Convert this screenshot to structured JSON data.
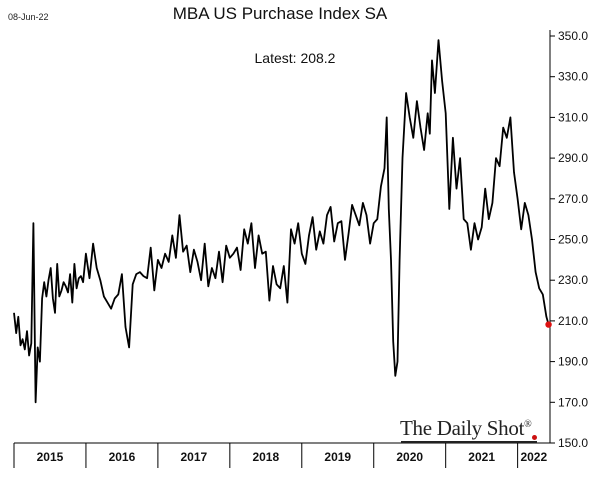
{
  "date_stamp": "08-Jun-22",
  "latest_label": "Latest:",
  "latest_value": "208.2",
  "watermark": "The Daily Shot",
  "watermark_mark": "®",
  "chart_data": {
    "type": "line",
    "title": "MBA US Purchase Index SA",
    "xlabel": "",
    "ylabel": "",
    "ylim": [
      150,
      350
    ],
    "xlim": [
      2015.0,
      2022.45
    ],
    "y_ticks": [
      "150.0",
      "170.0",
      "190.0",
      "210.0",
      "230.0",
      "250.0",
      "270.0",
      "290.0",
      "310.0",
      "330.0",
      "350.0"
    ],
    "x_tick_labels": [
      "2015",
      "2016",
      "2017",
      "2018",
      "2019",
      "2020",
      "2021",
      "2022"
    ],
    "grid": false,
    "legend": "none",
    "line_color": "#000000",
    "marker_color": "#dd1111",
    "series": [
      {
        "x": [
          2015.0,
          2015.03,
          2015.06,
          2015.09,
          2015.12,
          2015.15,
          2015.18,
          2015.21,
          2015.24,
          2015.27,
          2015.3,
          2015.33,
          2015.36,
          2015.39,
          2015.42,
          2015.45,
          2015.48,
          2015.51,
          2015.54,
          2015.57,
          2015.6,
          2015.63,
          2015.66,
          2015.69,
          2015.72,
          2015.75,
          2015.78,
          2015.81,
          2015.84,
          2015.87,
          2015.9,
          2015.93,
          2015.96,
          2016.0,
          2016.05,
          2016.1,
          2016.15,
          2016.2,
          2016.25,
          2016.3,
          2016.35,
          2016.4,
          2016.45,
          2016.5,
          2016.55,
          2016.6,
          2016.65,
          2016.7,
          2016.75,
          2016.8,
          2016.85,
          2016.9,
          2016.95,
          2017.0,
          2017.05,
          2017.1,
          2017.15,
          2017.2,
          2017.25,
          2017.3,
          2017.35,
          2017.4,
          2017.45,
          2017.5,
          2017.55,
          2017.6,
          2017.65,
          2017.7,
          2017.75,
          2017.8,
          2017.85,
          2017.9,
          2017.95,
          2018.0,
          2018.05,
          2018.1,
          2018.15,
          2018.2,
          2018.25,
          2018.3,
          2018.35,
          2018.4,
          2018.45,
          2018.5,
          2018.55,
          2018.6,
          2018.65,
          2018.7,
          2018.75,
          2018.8,
          2018.85,
          2018.9,
          2018.95,
          2019.0,
          2019.05,
          2019.1,
          2019.15,
          2019.2,
          2019.25,
          2019.3,
          2019.35,
          2019.4,
          2019.45,
          2019.5,
          2019.55,
          2019.6,
          2019.65,
          2019.7,
          2019.75,
          2019.8,
          2019.85,
          2019.9,
          2019.95,
          2020.0,
          2020.05,
          2020.1,
          2020.15,
          2020.18,
          2020.21,
          2020.24,
          2020.27,
          2020.3,
          2020.33,
          2020.36,
          2020.4,
          2020.45,
          2020.5,
          2020.55,
          2020.6,
          2020.65,
          2020.7,
          2020.75,
          2020.78,
          2020.81,
          2020.85,
          2020.9,
          2020.95,
          2021.0,
          2021.05,
          2021.1,
          2021.15,
          2021.2,
          2021.25,
          2021.3,
          2021.35,
          2021.4,
          2021.45,
          2021.5,
          2021.55,
          2021.6,
          2021.65,
          2021.7,
          2021.75,
          2021.8,
          2021.85,
          2021.9,
          2021.95,
          2022.0,
          2022.05,
          2022.1,
          2022.15,
          2022.2,
          2022.25,
          2022.3,
          2022.35,
          2022.4,
          2022.43
        ],
        "values": [
          214,
          204,
          212,
          198,
          201,
          196,
          205,
          193,
          199,
          258,
          170,
          197,
          190,
          221,
          229,
          222,
          230,
          236,
          221,
          214,
          238,
          222,
          225,
          229,
          227,
          224,
          233,
          219,
          238,
          226,
          231,
          232,
          229,
          243,
          231,
          248,
          236,
          230,
          222,
          219,
          216,
          221,
          223,
          233,
          207,
          197,
          228,
          233,
          234,
          232,
          231,
          246,
          225,
          240,
          236,
          243,
          239,
          252,
          241,
          262,
          244,
          247,
          234,
          245,
          239,
          230,
          248,
          227,
          236,
          231,
          244,
          229,
          247,
          241,
          243,
          246,
          235,
          255,
          248,
          258,
          236,
          252,
          243,
          244,
          220,
          237,
          228,
          226,
          237,
          219,
          255,
          248,
          258,
          243,
          238,
          252,
          261,
          245,
          254,
          248,
          262,
          266,
          249,
          258,
          259,
          240,
          253,
          267,
          262,
          257,
          268,
          262,
          248,
          258,
          260,
          276,
          285,
          310,
          265,
          240,
          200,
          183,
          190,
          240,
          290,
          322,
          310,
          300,
          318,
          305,
          294,
          312,
          302,
          338,
          322,
          348,
          328,
          312,
          265,
          300,
          275,
          290,
          260,
          258,
          245,
          258,
          250,
          256,
          275,
          260,
          268,
          290,
          286,
          305,
          300,
          310,
          283,
          270,
          255,
          268,
          262,
          250,
          234,
          226,
          223,
          212,
          208.2
        ],
        "last_value": 208.2
      }
    ]
  }
}
